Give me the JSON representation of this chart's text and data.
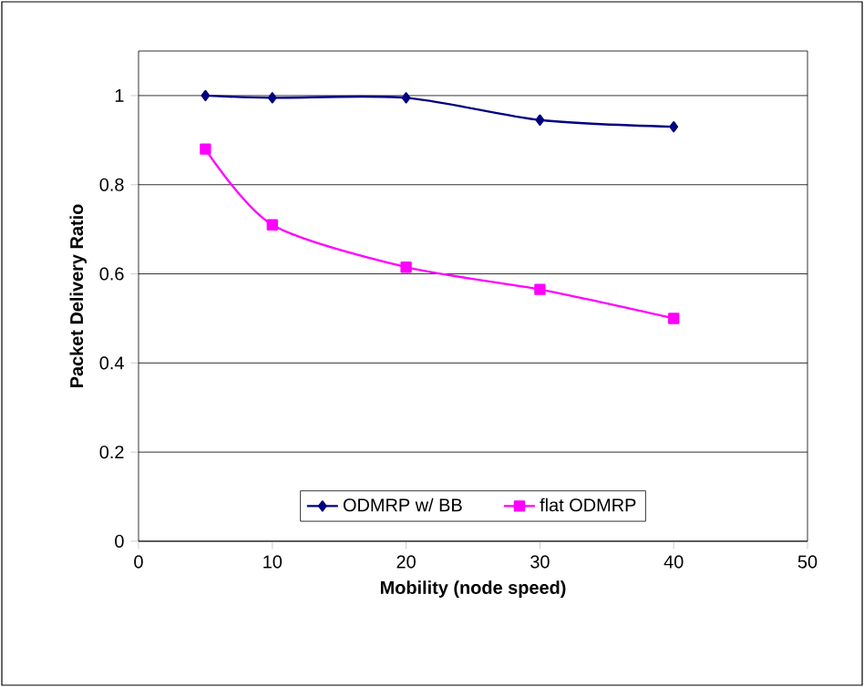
{
  "chart_data": {
    "type": "line",
    "xlabel": "Mobility (node speed)",
    "ylabel": "Packet Delivery Ratio",
    "x": [
      5,
      10,
      20,
      30,
      40
    ],
    "series": [
      {
        "name": "ODMRP w/ BB",
        "color": "#000080",
        "marker": "diamond",
        "values": [
          1.0,
          0.995,
          0.995,
          0.945,
          0.93
        ]
      },
      {
        "name": "flat ODMRP",
        "color": "#ff00ff",
        "marker": "square",
        "values": [
          0.88,
          0.71,
          0.615,
          0.565,
          0.5
        ]
      }
    ],
    "xlim": [
      0,
      50
    ],
    "xticks": [
      0,
      10,
      20,
      30,
      40,
      50
    ],
    "ylim": [
      0,
      1.1
    ],
    "yticks": [
      0,
      0.2,
      0.4,
      0.6,
      0.8,
      1
    ],
    "grid": "y",
    "legend": "bottom",
    "line_style": "solid"
  }
}
